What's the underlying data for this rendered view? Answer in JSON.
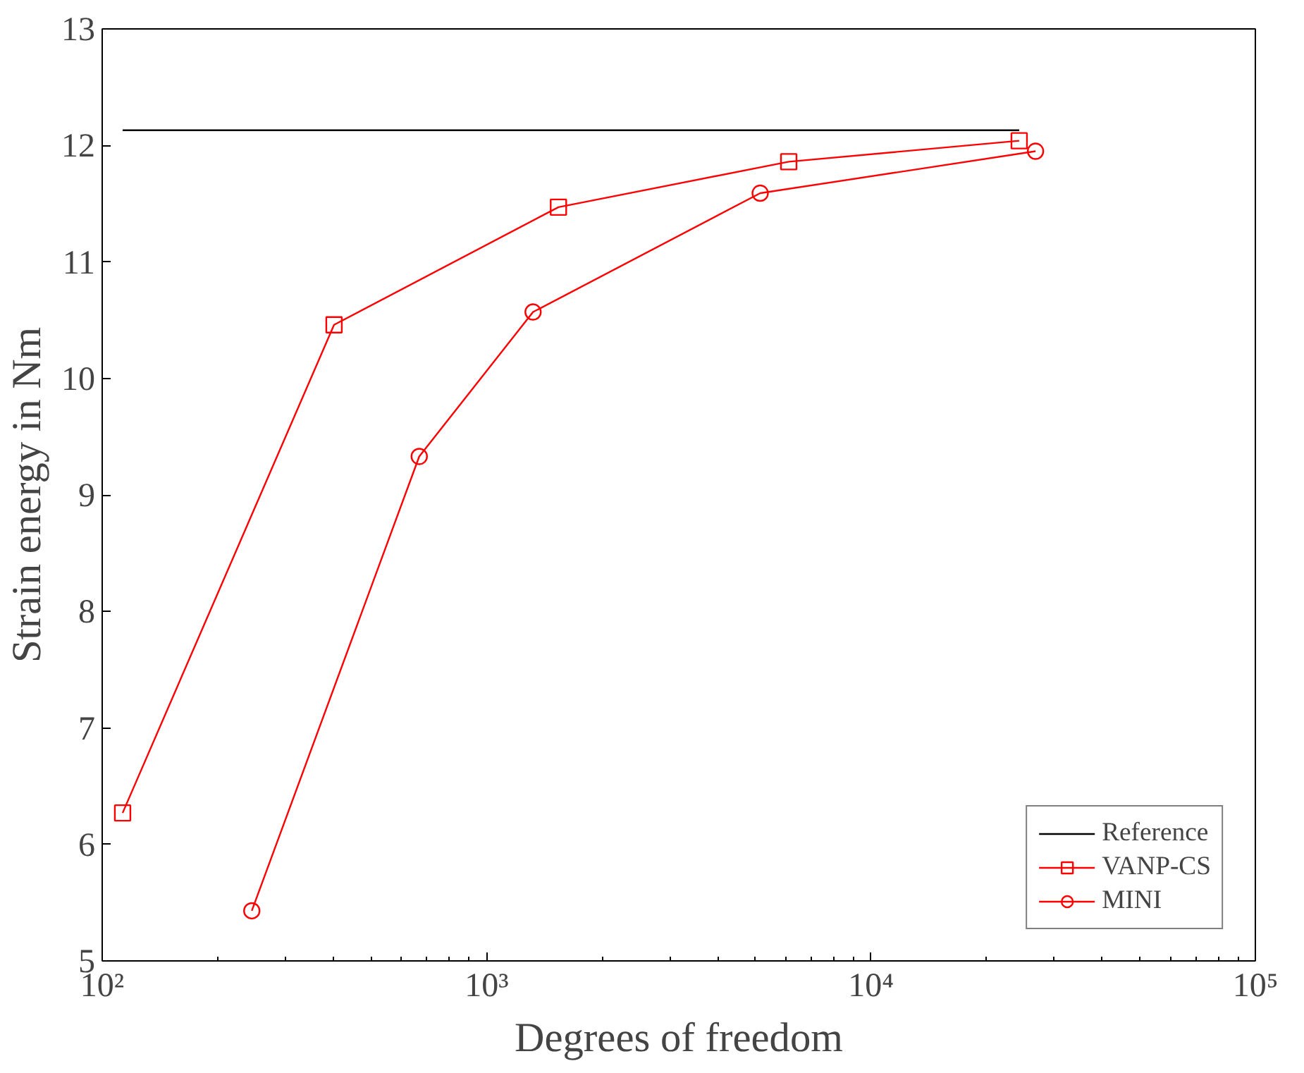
{
  "chart_data": {
    "type": "line",
    "xlabel": "Degrees of freedom",
    "ylabel": "Strain energy in Nm",
    "log": "x",
    "xlim": [
      100,
      100000
    ],
    "ylim": [
      5,
      13
    ],
    "xticks": [
      {
        "value": 100,
        "label": "10²"
      },
      {
        "value": 1000,
        "label": "10³"
      },
      {
        "value": 10000,
        "label": "10⁴"
      },
      {
        "value": 100000,
        "label": "10⁵"
      }
    ],
    "yticks": [
      5,
      6,
      7,
      8,
      9,
      10,
      11,
      12,
      13
    ],
    "grid": false,
    "legend": "bottom right",
    "line_style": "solid",
    "series": [
      {
        "name": "Reference",
        "color": "#000000",
        "marker": "none",
        "x": [
          113,
          24300
        ],
        "values": [
          12.13,
          12.13
        ]
      },
      {
        "name": "VANP-CS",
        "color": "#ff0000",
        "marker": "square",
        "x": [
          113,
          401,
          1538,
          6110,
          24300
        ],
        "values": [
          6.27,
          10.46,
          11.47,
          11.86,
          12.04
        ]
      },
      {
        "name": "MINI",
        "color": "#ff0000",
        "marker": "circle",
        "x": [
          245,
          668,
          1321,
          5150,
          26800
        ],
        "values": [
          5.43,
          9.33,
          10.57,
          11.59,
          11.95
        ]
      }
    ]
  }
}
